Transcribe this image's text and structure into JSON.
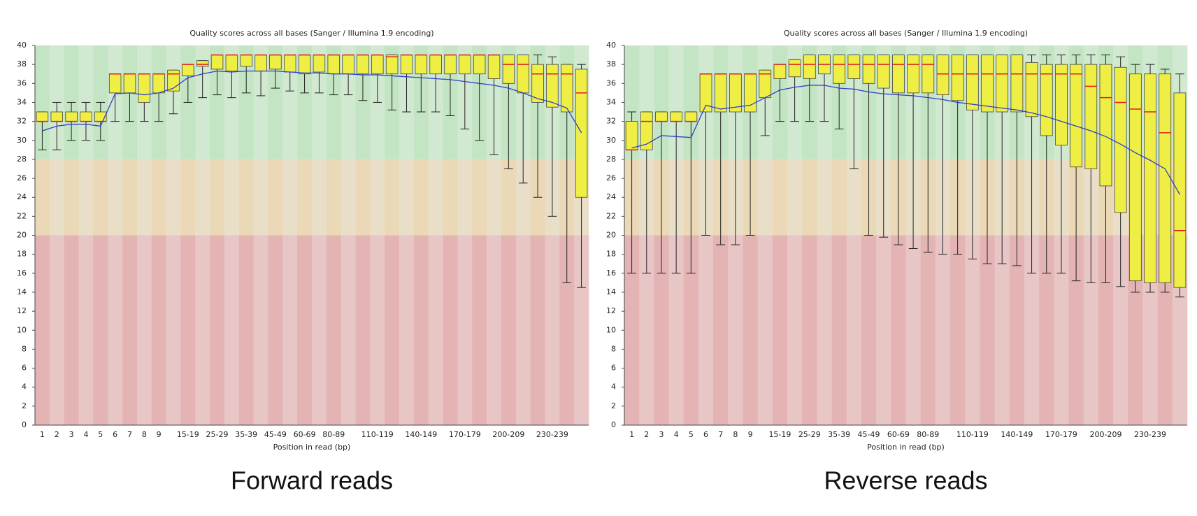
{
  "chart_data": [
    {
      "type": "box",
      "title": "Quality scores across all bases (Sanger / Illumina 1.9 encoding)",
      "xlabel": "Position in read (bp)",
      "caption": "Forward reads",
      "categories": [
        "1",
        "2",
        "3",
        "4",
        "5",
        "6",
        "7",
        "8",
        "9",
        null,
        "15-19",
        null,
        "25-29",
        null,
        "35-39",
        null,
        "45-49",
        null,
        "60-69",
        null,
        "80-89",
        null,
        null,
        "110-119",
        null,
        null,
        "140-149",
        null,
        null,
        "170-179",
        null,
        null,
        "200-209",
        null,
        null,
        "230-239",
        null,
        null
      ],
      "lower_whisker": [
        29,
        29,
        30,
        30,
        30,
        32,
        32,
        32,
        32,
        32.8,
        34,
        34.5,
        34.8,
        34.5,
        35,
        34.7,
        35.5,
        35.2,
        35,
        35,
        34.8,
        34.8,
        34.2,
        34,
        33.2,
        33,
        33,
        33,
        32.6,
        31.2,
        30,
        28.5,
        27,
        25.5,
        24,
        22,
        15,
        14.5
      ],
      "q1": [
        32,
        32,
        32,
        32,
        32,
        35,
        35,
        34,
        35,
        35.2,
        36.8,
        37.8,
        37.5,
        37.3,
        37.8,
        37.3,
        37.5,
        37.2,
        37,
        37.2,
        37,
        37,
        37,
        37,
        37,
        37,
        37,
        37,
        37,
        37,
        37,
        36.5,
        36,
        35,
        34,
        33.5,
        33,
        24
      ],
      "median": [
        32,
        32,
        32,
        32,
        32,
        37,
        37,
        37,
        37,
        37,
        38,
        38,
        39,
        39,
        39,
        39,
        39,
        39,
        39,
        39,
        39,
        39,
        39,
        39,
        38.8,
        39,
        39,
        39,
        39,
        39,
        39,
        39,
        38,
        38,
        37,
        37,
        37,
        35
      ],
      "q3": [
        33,
        33,
        33,
        33,
        33,
        37,
        37,
        37,
        37,
        37.4,
        38,
        38.4,
        39,
        39,
        39,
        39,
        39,
        39,
        39,
        39,
        39,
        39,
        39,
        39,
        39,
        39,
        39,
        39,
        39,
        39,
        39,
        39,
        39,
        39,
        38,
        38,
        38,
        37.5
      ],
      "upper_whisker": [
        33,
        34,
        34,
        34,
        34,
        37,
        37,
        37,
        37,
        37.4,
        38,
        38.4,
        39,
        39,
        39,
        39,
        39,
        39,
        39,
        39,
        39,
        39,
        39,
        39,
        39,
        39,
        39,
        39,
        39,
        39,
        39,
        39,
        39,
        39,
        39,
        38.8,
        38,
        38
      ],
      "mean": [
        31,
        31.5,
        31.7,
        31.7,
        31.5,
        34.9,
        35,
        34.8,
        35,
        35.5,
        36.6,
        37,
        37.3,
        37.2,
        37.3,
        37.3,
        37.3,
        37.2,
        37.1,
        37.1,
        37,
        37,
        36.9,
        36.9,
        36.8,
        36.7,
        36.6,
        36.5,
        36.4,
        36.2,
        36,
        35.8,
        35.5,
        35,
        34.4,
        34,
        33.4,
        30.8
      ],
      "ylim": [
        0,
        40
      ],
      "yticks": [
        0,
        2,
        4,
        6,
        8,
        10,
        12,
        14,
        16,
        18,
        20,
        22,
        24,
        26,
        28,
        30,
        32,
        34,
        36,
        38,
        40
      ],
      "box_color": "#eeee44",
      "median_color": "#e02020",
      "mean_color": "#3040c8",
      "bands": [
        {
          "from": 28,
          "to": 40,
          "colors": [
            "#c3e5c3",
            "#d1e8d1"
          ]
        },
        {
          "from": 20,
          "to": 28,
          "colors": [
            "#ead8b6",
            "#e9dfc8"
          ]
        },
        {
          "from": 0,
          "to": 20,
          "colors": [
            "#e4b4b4",
            "#e8c6c6"
          ]
        }
      ]
    },
    {
      "type": "box",
      "title": "Quality scores across all bases (Sanger / Illumina 1.9 encoding)",
      "xlabel": "Position in read (bp)",
      "caption": "Reverse reads",
      "categories": [
        "1",
        "2",
        "3",
        "4",
        "5",
        "6",
        "7",
        "8",
        "9",
        null,
        "15-19",
        null,
        "25-29",
        null,
        "35-39",
        null,
        "45-49",
        null,
        "60-69",
        null,
        "80-89",
        null,
        null,
        "110-119",
        null,
        null,
        "140-149",
        null,
        null,
        "170-179",
        null,
        null,
        "200-209",
        null,
        null,
        "230-239",
        null,
        null
      ],
      "lower_whisker": [
        16,
        16,
        16,
        16,
        16,
        20,
        19,
        19,
        20,
        30.5,
        32,
        32,
        32,
        32,
        31.2,
        27,
        20,
        19.8,
        19,
        18.6,
        18.2,
        18,
        18,
        17.5,
        17,
        17,
        16.8,
        16,
        16,
        16,
        15.2,
        15,
        15,
        14.6,
        14,
        14,
        14,
        13.5
      ],
      "q1": [
        29,
        29,
        32,
        32,
        32,
        33,
        33,
        33,
        33,
        34.5,
        36.5,
        36.7,
        36.5,
        37,
        36,
        36.5,
        36,
        35.5,
        35,
        35,
        35,
        34.8,
        34.2,
        33.2,
        33,
        33,
        33,
        32.5,
        30.5,
        29.5,
        27.2,
        27,
        25.2,
        22.4,
        15.2,
        15,
        15,
        14.5
      ],
      "median": [
        29,
        32,
        32,
        32,
        32,
        37,
        37,
        37,
        37,
        37,
        38,
        38,
        38,
        38,
        38,
        38,
        38,
        38,
        38,
        38,
        38,
        37,
        37,
        37,
        37,
        37,
        37,
        37,
        37,
        37,
        37,
        35.7,
        34.5,
        34,
        33.3,
        33,
        30.8,
        20.5
      ],
      "q3": [
        32,
        33,
        33,
        33,
        33,
        37,
        37,
        37,
        37,
        37.4,
        38,
        38.5,
        39,
        39,
        39,
        39,
        39,
        39,
        39,
        39,
        39,
        39,
        39,
        39,
        39,
        39,
        39,
        38.2,
        38,
        38,
        38,
        38,
        38,
        37.7,
        37,
        37,
        37,
        35
      ],
      "upper_whisker": [
        33,
        33,
        33,
        33,
        33,
        37,
        37,
        37,
        37,
        37.4,
        38,
        38.5,
        39,
        39,
        39,
        39,
        39,
        39,
        39,
        39,
        39,
        39,
        39,
        39,
        39,
        39,
        39,
        39,
        39,
        39,
        39,
        39,
        39,
        38.8,
        38,
        38,
        37.5,
        37
      ],
      "mean": [
        29.2,
        29.6,
        30.5,
        30.4,
        30.3,
        33.7,
        33.3,
        33.5,
        33.7,
        34.5,
        35.3,
        35.6,
        35.8,
        35.8,
        35.5,
        35.4,
        35.1,
        34.9,
        34.8,
        34.7,
        34.5,
        34.3,
        34,
        33.8,
        33.6,
        33.4,
        33.2,
        32.9,
        32.5,
        32,
        31.5,
        31,
        30.4,
        29.6,
        28.7,
        27.9,
        27,
        24.3
      ],
      "ylim": [
        0,
        40
      ],
      "yticks": [
        0,
        2,
        4,
        6,
        8,
        10,
        12,
        14,
        16,
        18,
        20,
        22,
        24,
        26,
        28,
        30,
        32,
        34,
        36,
        38,
        40
      ],
      "box_color": "#eeee44",
      "median_color": "#e02020",
      "mean_color": "#3040c8",
      "bands": [
        {
          "from": 28,
          "to": 40,
          "colors": [
            "#c3e5c3",
            "#d1e8d1"
          ]
        },
        {
          "from": 20,
          "to": 28,
          "colors": [
            "#ead8b6",
            "#e9dfc8"
          ]
        },
        {
          "from": 0,
          "to": 20,
          "colors": [
            "#e4b4b4",
            "#e8c6c6"
          ]
        }
      ]
    }
  ]
}
